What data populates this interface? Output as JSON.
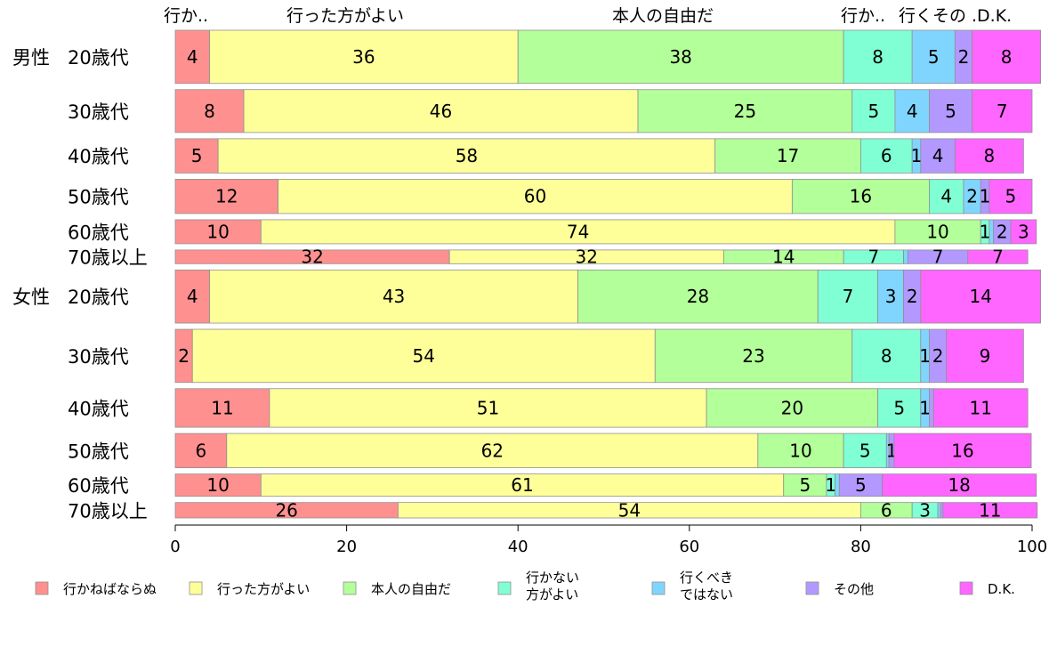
{
  "chart_data": {
    "type": "bar",
    "orientation": "horizontal",
    "stacked": true,
    "xlim": [
      0,
      100
    ],
    "xticks": [
      "0",
      "20",
      "40",
      "60",
      "80",
      "100"
    ],
    "grid": false,
    "legend_position": "bottom",
    "top_labels": [
      "行か..",
      "行った方がよい",
      "本人の自由だ",
      "行か..",
      "行くその",
      ".D.K."
    ],
    "groups": [
      {
        "label": "男性",
        "first_row": 0
      },
      {
        "label": "女性",
        "first_row": 6
      }
    ],
    "categories": [
      "20歳代",
      "30歳代",
      "40歳代",
      "50歳代",
      "60歳代",
      "70歳以上",
      "20歳代",
      "30歳代",
      "40歳代",
      "50歳代",
      "60歳代",
      "70歳以上"
    ],
    "row_weights": [
      62,
      50,
      40,
      40,
      28,
      16,
      62,
      62,
      45,
      40,
      26,
      18
    ],
    "series": [
      {
        "name": "行かねばならぬ",
        "color": "#ff9090",
        "values": [
          4,
          8,
          5,
          12,
          10,
          32,
          4,
          2,
          11,
          6,
          10,
          26
        ]
      },
      {
        "name": "行った方がよい",
        "color": "#ffff99",
        "values": [
          36,
          46,
          58,
          60,
          74,
          32,
          43,
          54,
          51,
          62,
          61,
          54
        ]
      },
      {
        "name": "本人の自由だ",
        "color": "#b3ff99",
        "values": [
          38,
          25,
          17,
          16,
          10,
          14,
          28,
          23,
          20,
          10,
          5,
          6
        ]
      },
      {
        "name": "行かない\n方がよい",
        "color": "#80ffd5",
        "values": [
          8,
          5,
          6,
          4,
          1,
          7,
          7,
          8,
          5,
          5,
          1,
          3
        ]
      },
      {
        "name": "行くべき\nではない",
        "color": "#80d5ff",
        "values": [
          5,
          4,
          1,
          2,
          0.5,
          0.5,
          3,
          1,
          1,
          0.3,
          0.5,
          0.3
        ]
      },
      {
        "name": "その他",
        "color": "#b399ff",
        "values": [
          2,
          5,
          4,
          1,
          2,
          7,
          2,
          2,
          0.5,
          0.6,
          5,
          0.3
        ]
      },
      {
        "name": "D.K.",
        "color": "#ff66ff",
        "values": [
          8,
          7,
          8,
          5,
          3,
          7,
          14,
          9,
          11,
          16,
          18,
          11
        ]
      }
    ],
    "value_labels": [
      [
        "4",
        "36",
        "38",
        "8",
        "5",
        "2",
        "8"
      ],
      [
        "8",
        "46",
        "25",
        "5",
        "4",
        "5",
        "7"
      ],
      [
        "5",
        "58",
        "17",
        "6",
        "1",
        "4",
        "8"
      ],
      [
        "12",
        "60",
        "16",
        "4",
        "2",
        "1",
        "5"
      ],
      [
        "10",
        "74",
        "10",
        "1",
        "",
        "2",
        "3"
      ],
      [
        "32",
        "32",
        "14",
        "7",
        "",
        "7",
        "7"
      ],
      [
        "4",
        "43",
        "28",
        "7",
        "3",
        "2",
        "14"
      ],
      [
        "2",
        "54",
        "23",
        "8",
        "1",
        "2",
        "9"
      ],
      [
        "11",
        "51",
        "20",
        "5",
        "1",
        "",
        "11"
      ],
      [
        "6",
        "62",
        "10",
        "5",
        "",
        "1",
        "16"
      ],
      [
        "10",
        "61",
        "5",
        "1",
        "",
        "5",
        "18"
      ],
      [
        "26",
        "54",
        "6",
        "3",
        "",
        "",
        "11"
      ]
    ]
  }
}
